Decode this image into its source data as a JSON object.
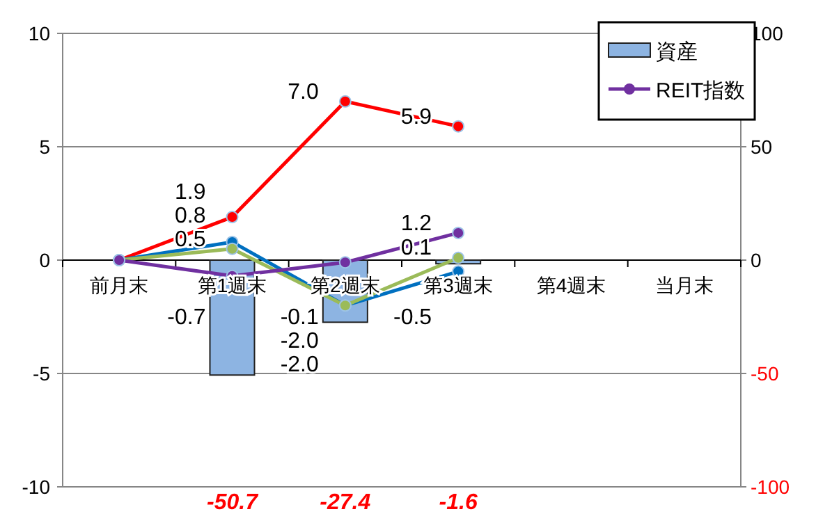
{
  "chart_data": {
    "type": "line",
    "categories": [
      "前月末",
      "第1週末",
      "第2週末",
      "第3週末",
      "第4週末",
      "当月末"
    ],
    "ylim": [
      -10,
      10
    ],
    "yticks": [
      -10,
      -5,
      0,
      5,
      10
    ],
    "y2lim": [
      -100,
      100
    ],
    "y2ticks": [
      -100,
      -50,
      0,
      50,
      100
    ],
    "grid": "y",
    "legend": "top right",
    "marker": "circle",
    "series": [
      {
        "name": "資産",
        "type": "bar",
        "axis": "y2",
        "color": "#8db4e2",
        "values": [
          null,
          -50.7,
          -27.4,
          -1.6,
          null,
          null
        ],
        "value_labels": [
          null,
          "-50.7",
          "-27.4",
          "-1.6",
          null,
          null
        ]
      },
      {
        "color": "#ff0000",
        "values": [
          0,
          1.9,
          7.0,
          5.9,
          null,
          null
        ],
        "value_labels": [
          null,
          "1.9",
          "7.0",
          "5.9",
          null,
          null
        ]
      },
      {
        "color": "#0070c0",
        "values": [
          0,
          0.8,
          -2.0,
          -0.5,
          null,
          null
        ],
        "value_labels": [
          null,
          "0.8",
          "-2.0",
          "-0.5",
          null,
          null
        ]
      },
      {
        "color": "#9bbb59",
        "values": [
          0,
          0.5,
          -2.0,
          0.1,
          null,
          null
        ],
        "value_labels": [
          null,
          "0.5",
          "-2.0",
          "0.1",
          null,
          null
        ]
      },
      {
        "name": "REIT指数",
        "color": "#7030a0",
        "values": [
          0,
          -0.7,
          -0.1,
          1.2,
          null,
          null
        ],
        "value_labels": [
          null,
          "-0.7",
          "-0.1",
          "1.2",
          null,
          null
        ]
      }
    ]
  }
}
